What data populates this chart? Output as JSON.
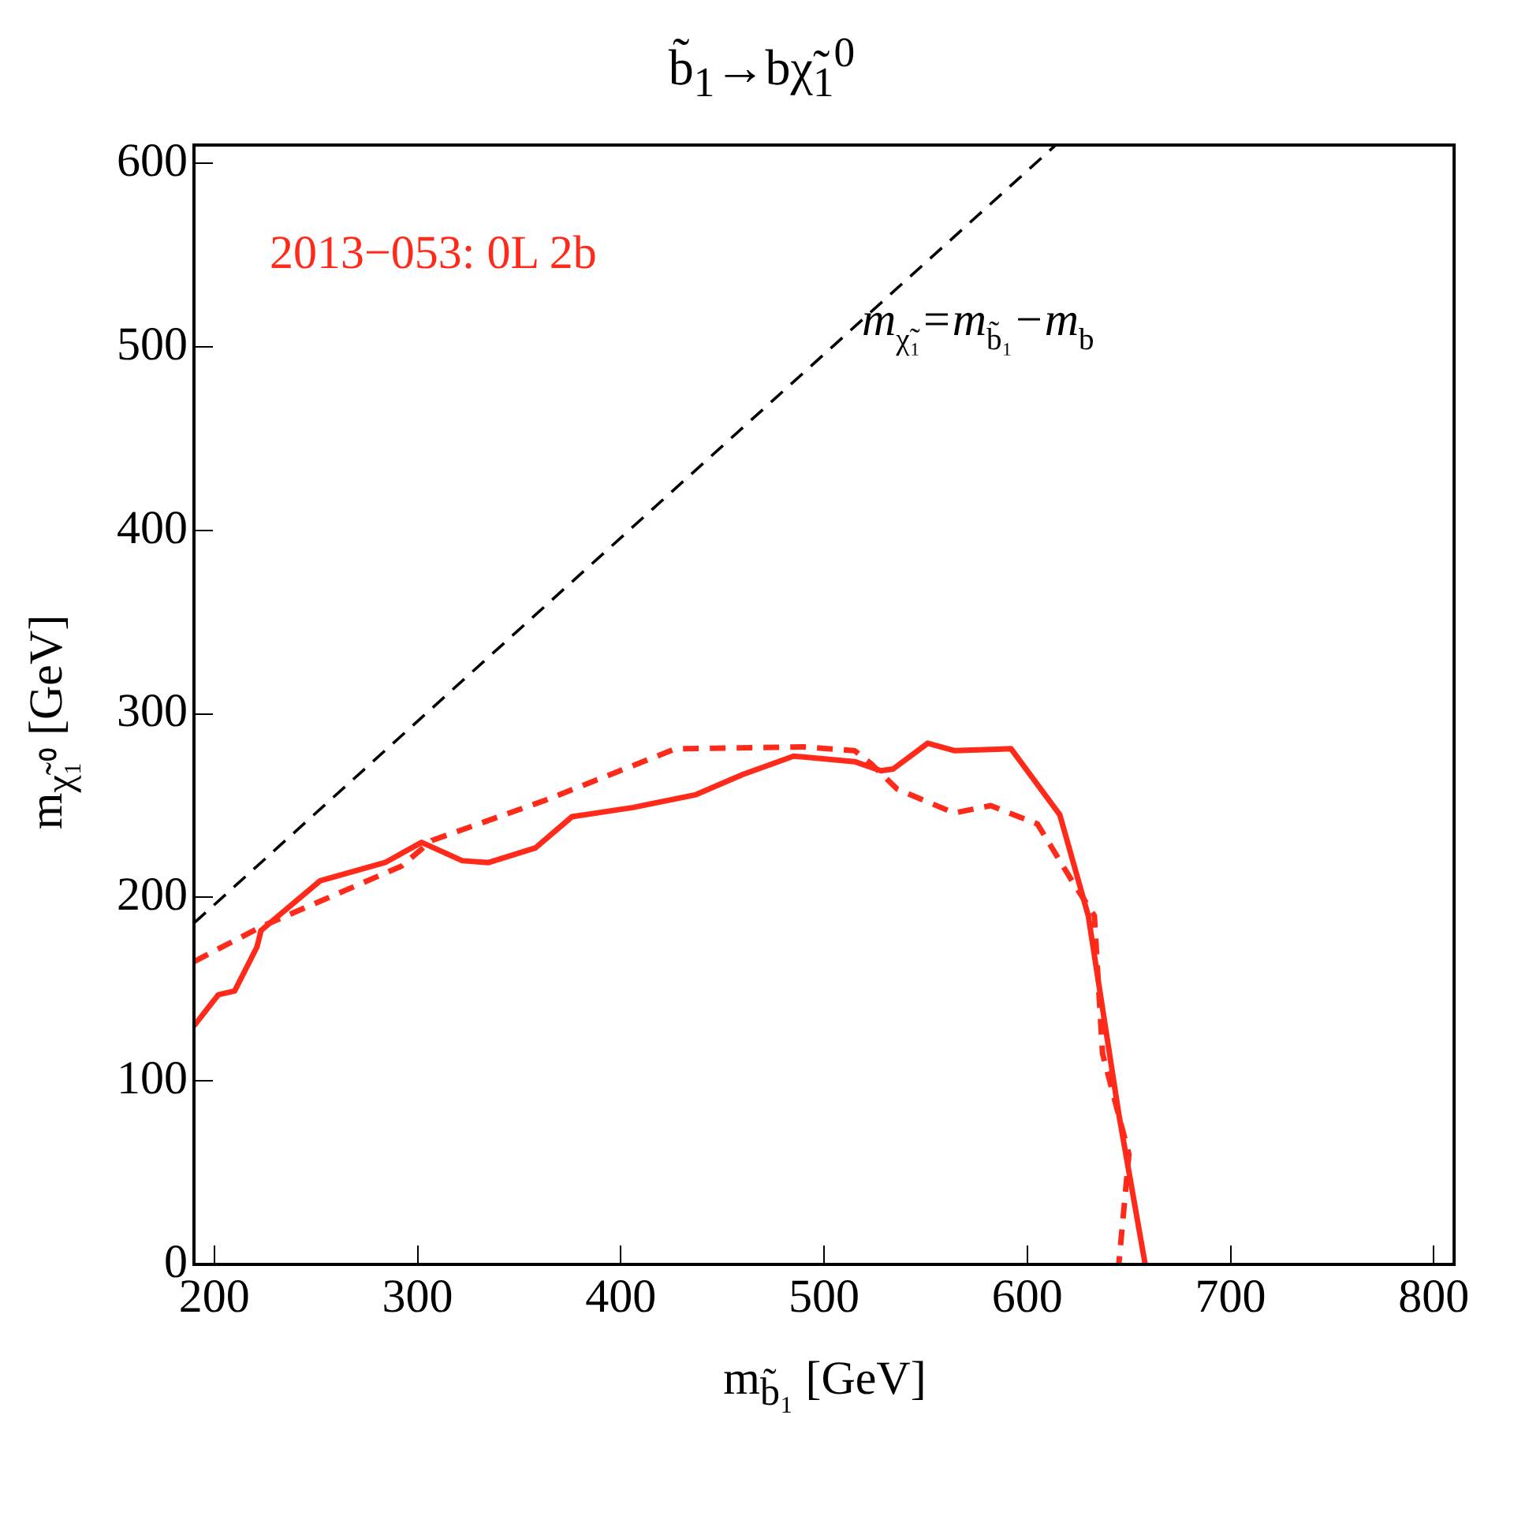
{
  "chart_data": {
    "type": "line",
    "title": "b̃$_{1}$→bχ̃$_{1}$$^{0}$",
    "xlabel": "m$_{b̃₁}$ [GeV]",
    "ylabel": "m$_{χ̃₁⁰}$ [GeV]",
    "xlim": [
      190,
      810
    ],
    "ylim": [
      0,
      610
    ],
    "xticks": [
      200,
      300,
      400,
      500,
      600,
      700,
      800
    ],
    "yticks": [
      0,
      100,
      200,
      300,
      400,
      500,
      600
    ],
    "marker": "none",
    "annotations": [
      "2013−053: 0L 2b",
      "m$_{χ̃₁}$=m$_{b̃₁}$−m$_{b}$"
    ],
    "series": [
      {
        "color": "#000000",
        "line_style": "dashed",
        "x": [
          190,
          614
        ],
        "values": [
          186,
          610
        ]
      },
      {
        "color": "#ff2a1a",
        "line_style": "solid",
        "x": [
          190,
          202,
          210,
          221,
          223,
          252,
          284,
          302,
          322,
          335,
          358,
          376,
          406,
          437,
          460,
          485,
          515,
          528,
          534,
          551,
          564,
          592,
          616,
          630,
          645,
          658
        ],
        "values": [
          130,
          147,
          149,
          173,
          182,
          209,
          219,
          230,
          220,
          219,
          227,
          244,
          249,
          256,
          267,
          277,
          274,
          269,
          270,
          284,
          280,
          281,
          245,
          190,
          82,
          0
        ]
      },
      {
        "color": "#ff2a1a",
        "line_style": "dashed",
        "x": [
          190,
          223,
          292,
          307,
          363,
          427,
          490,
          515,
          523,
          536,
          564,
          582,
          605,
          622,
          633,
          637,
          650,
          645
        ],
        "values": [
          165,
          184,
          217,
          231,
          253,
          281,
          282,
          280,
          273,
          259,
          246,
          250,
          240,
          209,
          190,
          115,
          60,
          0
        ]
      }
    ]
  }
}
